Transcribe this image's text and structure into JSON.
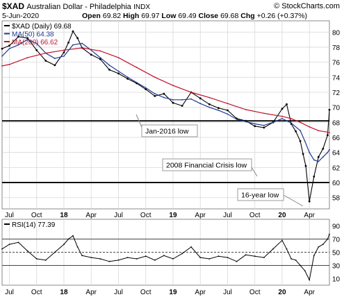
{
  "header": {
    "symbol": "$XAD",
    "name": "Australian Dollar - Philadelphia",
    "exchange": "INDX",
    "date": "5-Jun-2020",
    "open_label": "Open",
    "open": "69.82",
    "high_label": "High",
    "high": "69.97",
    "low_label": "Low",
    "low": "69.49",
    "close_label": "Close",
    "close": "69.68",
    "chg_label": "Chg",
    "chg": "+0.26 (+0.37%)",
    "watermark": "© StockCharts.com"
  },
  "colors": {
    "price": "#000000",
    "ma50": "#1f3a93",
    "ma200": "#c0102a",
    "rsi": "#000000",
    "annotation_box": "#ffffff"
  },
  "chart_data": [
    {
      "type": "line",
      "title": "$XAD Australian Dollar - Philadelphia INDX",
      "legend": [
        {
          "label": "$XAD (Daily) 69.68",
          "color": "#000000"
        },
        {
          "label": "MA(50) 64.38",
          "color": "#1f3a93"
        },
        {
          "label": "MA(200) 66.62",
          "color": "#c0102a"
        }
      ],
      "legend_placement": "top-left",
      "ylim": [
        56.5,
        81.5
      ],
      "yticks": [
        "58",
        "60",
        "62",
        "64",
        "66",
        "68",
        "70",
        "72",
        "74",
        "76",
        "78",
        "80"
      ],
      "x_tick_labels": [
        "Jul",
        "Oct",
        "18",
        "Apr",
        "Jul",
        "Oct",
        "19",
        "Apr",
        "Jul",
        "Oct",
        "20",
        "Apr"
      ],
      "x_tick_months": [
        6,
        9,
        12,
        15,
        18,
        21,
        24,
        27,
        30,
        33,
        36,
        39
      ],
      "x_range_months": [
        5.2,
        41.2
      ],
      "grid": true,
      "series": [
        {
          "name": "$XAD (Daily)",
          "months": [
            5.2,
            6,
            7,
            8,
            9,
            10,
            11,
            12,
            12.5,
            13,
            13.5,
            14,
            15,
            16,
            17,
            18,
            19,
            20,
            21,
            22,
            23,
            24,
            25,
            26,
            27,
            28,
            29,
            30,
            31,
            32,
            33,
            34,
            35,
            36,
            36.5,
            37,
            37.5,
            38,
            38.3,
            38.6,
            39,
            39.5,
            40,
            40.5,
            41,
            41.2
          ],
          "values": [
            77.8,
            78.2,
            79.4,
            79.2,
            77.6,
            76.2,
            75.6,
            77.3,
            78.6,
            80.1,
            79.2,
            77.9,
            77.0,
            76.4,
            75.0,
            74.5,
            73.8,
            73.2,
            72.4,
            71.5,
            71.8,
            70.6,
            70.2,
            72.0,
            71.2,
            70.4,
            69.9,
            69.6,
            68.5,
            68.2,
            67.5,
            67.3,
            68.0,
            69.8,
            70.4,
            67.8,
            66.8,
            65.5,
            63.8,
            62.2,
            57.5,
            60.8,
            63.4,
            64.5,
            66.3,
            69.68
          ]
        },
        {
          "name": "MA(50)",
          "months": [
            5.2,
            6,
            7,
            8,
            9,
            10,
            11,
            12,
            13,
            14,
            15,
            16,
            17,
            18,
            19,
            20,
            21,
            22,
            23,
            24,
            25,
            26,
            27,
            28,
            29,
            30,
            31,
            32,
            33,
            34,
            35,
            36,
            37,
            38,
            38.5,
            39,
            39.5,
            40,
            40.5,
            41,
            41.2
          ],
          "values": [
            76.8,
            77.8,
            78.3,
            79.0,
            78.5,
            77.2,
            76.5,
            76.8,
            78.3,
            78.5,
            77.6,
            76.6,
            75.6,
            74.8,
            74.0,
            73.3,
            72.6,
            71.8,
            71.3,
            71.0,
            71.0,
            71.1,
            70.5,
            70.0,
            69.6,
            69.1,
            68.4,
            68.1,
            67.8,
            67.6,
            68.0,
            68.5,
            67.9,
            66.9,
            65.5,
            64.0,
            63.0,
            62.8,
            63.4,
            64.0,
            64.38
          ]
        },
        {
          "name": "MA(200)",
          "months": [
            5.2,
            6,
            8,
            10,
            12,
            14,
            16,
            18,
            20,
            22,
            24,
            26,
            28,
            30,
            32,
            34,
            36,
            37,
            38,
            39,
            40,
            41,
            41.2
          ],
          "values": [
            75.5,
            75.7,
            76.6,
            77.2,
            77.6,
            77.9,
            77.5,
            76.6,
            75.3,
            74.0,
            72.9,
            72.0,
            71.3,
            70.5,
            69.7,
            69.2,
            68.8,
            68.5,
            68.0,
            67.4,
            66.9,
            66.7,
            66.62
          ]
        }
      ],
      "annotations": [
        {
          "text": "Jan-2016 low",
          "level": 68.2
        },
        {
          "text": "2008 Financial Crisis low",
          "level": 60.0
        },
        {
          "text": "16-year low",
          "level": 57.3
        }
      ]
    },
    {
      "type": "line",
      "legend": [
        {
          "label": "RSI(14) 77.39",
          "color": "#000000"
        }
      ],
      "ylim": [
        0,
        100
      ],
      "yticks": [
        "10",
        "30",
        "50",
        "70",
        "90"
      ],
      "reference_lines": [
        30,
        50,
        70
      ],
      "x_tick_labels": [
        "Jul",
        "Oct",
        "18",
        "Apr",
        "Jul",
        "Oct",
        "19",
        "Apr",
        "Jul",
        "Oct",
        "20",
        "Apr"
      ],
      "series": [
        {
          "name": "RSI(14)",
          "months": [
            5.2,
            6,
            7,
            8,
            9,
            10,
            11,
            12,
            12.5,
            13,
            13.5,
            14,
            15,
            16,
            17,
            18,
            19,
            20,
            21,
            22,
            23,
            24,
            25,
            26,
            27,
            28,
            29,
            30,
            31,
            32,
            33,
            34,
            35,
            36,
            36.5,
            37,
            37.5,
            38,
            38.5,
            39,
            39.5,
            40,
            40.5,
            41,
            41.2
          ],
          "values": [
            55,
            62,
            65,
            52,
            40,
            38,
            50,
            62,
            70,
            75,
            58,
            45,
            42,
            40,
            36,
            38,
            42,
            40,
            44,
            38,
            45,
            40,
            48,
            58,
            42,
            40,
            44,
            42,
            36,
            46,
            44,
            42,
            55,
            68,
            55,
            40,
            38,
            30,
            22,
            8,
            45,
            58,
            62,
            70,
            77.39
          ]
        }
      ]
    }
  ]
}
